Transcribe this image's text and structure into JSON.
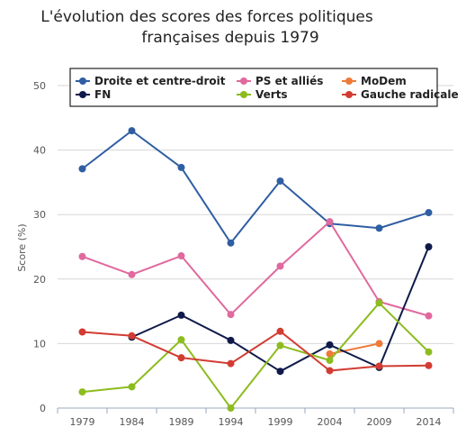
{
  "chart_data": {
    "type": "line",
    "title_line1": "L'évolution des scores des forces politiques",
    "title_line2": "françaises depuis 1979",
    "xlabel": "",
    "ylabel": "Score (%)",
    "x": [
      1979,
      1984,
      1989,
      1994,
      1999,
      2004,
      2009,
      2014
    ],
    "x_labels": [
      "1979",
      "1984",
      "1989",
      "1994",
      "1999",
      "2004",
      "2009",
      "2014"
    ],
    "ylim": [
      0,
      50
    ],
    "y_ticks": [
      "0",
      "10",
      "20",
      "30",
      "40",
      "50"
    ],
    "grid": true,
    "legend_position": "top",
    "series": [
      {
        "name": "Droite et centre-droit",
        "color": "#2f5ea3",
        "values": [
          37.1,
          43.0,
          37.3,
          25.6,
          35.2,
          28.6,
          27.9,
          30.3
        ]
      },
      {
        "name": "PS et alliés",
        "color": "#e0699e",
        "values": [
          23.5,
          20.7,
          23.6,
          14.5,
          22.0,
          28.9,
          16.5,
          14.3
        ]
      },
      {
        "name": "MoDem",
        "color": "#ee7a3a",
        "values": [
          null,
          null,
          null,
          null,
          null,
          8.4,
          10.0,
          null
        ]
      },
      {
        "name": "FN",
        "color": "#0f1a4a",
        "values": [
          null,
          11.0,
          14.4,
          10.5,
          5.7,
          9.8,
          6.3,
          25.0
        ]
      },
      {
        "name": "Verts",
        "color": "#8cbc1e",
        "values": [
          2.5,
          3.3,
          10.6,
          0.0,
          9.7,
          7.4,
          16.3,
          8.7
        ]
      },
      {
        "name": "Gauche radicale",
        "color": "#d23c32",
        "values": [
          11.8,
          11.2,
          7.8,
          6.9,
          11.9,
          5.8,
          6.5,
          6.6
        ]
      }
    ]
  }
}
